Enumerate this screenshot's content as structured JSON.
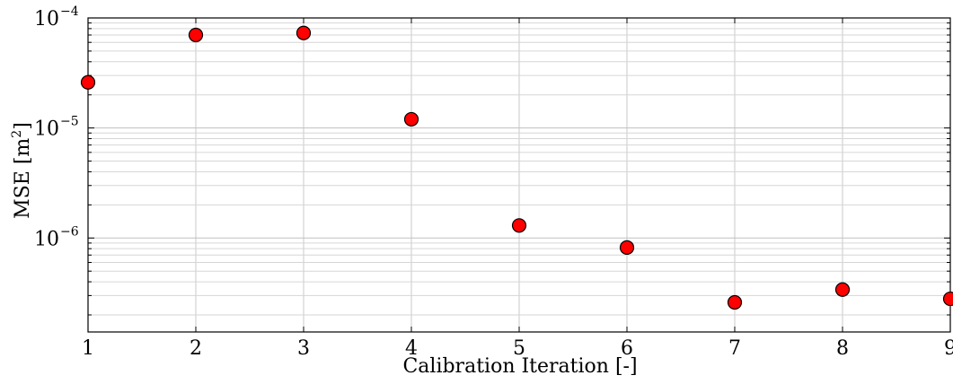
{
  "chart_data": {
    "type": "scatter",
    "x": [
      1,
      2,
      3,
      4,
      5,
      6,
      7,
      8,
      9
    ],
    "y": [
      2.6e-05,
      7e-05,
      7.3e-05,
      1.2e-05,
      1.3e-06,
      8.2e-07,
      2.6e-07,
      3.4e-07,
      2.8e-07
    ],
    "xlabel": "Calibration Iteration [-]",
    "ylabel_text": "MSE [m",
    "ylabel_exp": "2",
    "ylabel_close": "]",
    "xlim": [
      1,
      9
    ],
    "ylim": [
      1.4e-07,
      0.0001
    ],
    "yscale": "log",
    "x_ticks": [
      "1",
      "2",
      "3",
      "4",
      "5",
      "6",
      "7",
      "8",
      "9"
    ],
    "y_ticks": [
      {
        "base": "10",
        "exp": "−4"
      },
      {
        "base": "10",
        "exp": "−5"
      },
      {
        "base": "10",
        "exp": "−6"
      }
    ],
    "grid": true,
    "marker_color": "#ff0000",
    "marker_edge_color": "#000000"
  }
}
